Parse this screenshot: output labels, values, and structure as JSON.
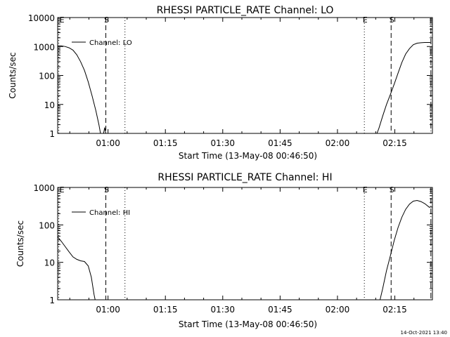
{
  "footer": {
    "timestamp": "14-Oct-2021 13:40"
  },
  "chart_data": [
    {
      "type": "line",
      "title": "RHESSI PARTICLE_RATE Channel: LO",
      "xlabel": "Start Time (13-May-08 00:46:50)",
      "ylabel": "Counts/sec",
      "yscale": "log",
      "ylim": [
        1,
        10000
      ],
      "xlim_minutes": [
        0,
        98
      ],
      "xticks": [
        {
          "label": "01:00",
          "minutes": 13.17
        },
        {
          "label": "01:15",
          "minutes": 28.17
        },
        {
          "label": "01:30",
          "minutes": 43.17
        },
        {
          "label": "01:45",
          "minutes": 58.17
        },
        {
          "label": "02:00",
          "minutes": 73.17
        },
        {
          "label": "02:15",
          "minutes": 88.17
        }
      ],
      "yticks": [
        {
          "label": "1",
          "value": 1
        },
        {
          "label": "10",
          "value": 10
        },
        {
          "label": "100",
          "value": 100
        },
        {
          "label": "1000",
          "value": 1000
        },
        {
          "label": "10000",
          "value": 10000
        }
      ],
      "legend": {
        "label": "Channel: LO",
        "placement": "top-left"
      },
      "markers": [
        {
          "label": "E",
          "minutes": 0.3,
          "style": "dotted"
        },
        {
          "label": "S",
          "minutes": 12.6,
          "style": "dashed"
        },
        {
          "label": "",
          "minutes": 17.6,
          "style": "dotted"
        },
        {
          "label": "E",
          "minutes": 80.2,
          "style": "dotted"
        },
        {
          "label": "S",
          "minutes": 87.2,
          "style": "dashed"
        },
        {
          "label": "",
          "minutes": 97.6,
          "style": "dashdot"
        }
      ],
      "series": [
        {
          "name": "Channel: LO",
          "segments": [
            [
              [
                0,
                1050
              ],
              [
                1,
                1050
              ],
              [
                2,
                1000
              ],
              [
                3,
                900
              ],
              [
                4,
                750
              ],
              [
                5,
                520
              ],
              [
                6,
                300
              ],
              [
                7,
                150
              ],
              [
                8,
                60
              ],
              [
                9,
                20
              ],
              [
                10,
                6
              ],
              [
                10.8,
                2
              ],
              [
                11.2,
                1
              ]
            ],
            [
              [
                12.0,
                1
              ],
              [
                12.3,
                1.6
              ],
              [
                12.6,
                1
              ]
            ],
            [
              [
                83.5,
                1
              ],
              [
                84,
                1.5
              ],
              [
                85,
                4
              ],
              [
                86,
                10
              ],
              [
                87,
                22
              ],
              [
                88,
                50
              ],
              [
                89,
                120
              ],
              [
                90,
                280
              ],
              [
                91,
                550
              ],
              [
                92,
                850
              ],
              [
                93,
                1150
              ],
              [
                94,
                1300
              ],
              [
                95,
                1350
              ],
              [
                96,
                1380
              ],
              [
                97.5,
                1380
              ]
            ]
          ]
        }
      ]
    },
    {
      "type": "line",
      "title": "RHESSI PARTICLE_RATE Channel: HI",
      "xlabel": "Start Time (13-May-08 00:46:50)",
      "ylabel": "Counts/sec",
      "yscale": "log",
      "ylim": [
        1,
        1000
      ],
      "xlim_minutes": [
        0,
        98
      ],
      "xticks": [
        {
          "label": "01:00",
          "minutes": 13.17
        },
        {
          "label": "01:15",
          "minutes": 28.17
        },
        {
          "label": "01:30",
          "minutes": 43.17
        },
        {
          "label": "01:45",
          "minutes": 58.17
        },
        {
          "label": "02:00",
          "minutes": 73.17
        },
        {
          "label": "02:15",
          "minutes": 88.17
        }
      ],
      "yticks": [
        {
          "label": "1",
          "value": 1
        },
        {
          "label": "10",
          "value": 10
        },
        {
          "label": "100",
          "value": 100
        },
        {
          "label": "1000",
          "value": 1000
        }
      ],
      "legend": {
        "label": "Channel: HI",
        "placement": "top-left"
      },
      "markers": [
        {
          "label": "E",
          "minutes": 0.3,
          "style": "dotted"
        },
        {
          "label": "S",
          "minutes": 12.6,
          "style": "dashed"
        },
        {
          "label": "",
          "minutes": 17.6,
          "style": "dotted"
        },
        {
          "label": "E",
          "minutes": 80.2,
          "style": "dotted"
        },
        {
          "label": "S",
          "minutes": 87.2,
          "style": "dashed"
        },
        {
          "label": "",
          "minutes": 97.6,
          "style": "dashdot"
        }
      ],
      "series": [
        {
          "name": "Channel: HI",
          "segments": [
            [
              [
                0,
                48
              ],
              [
                1,
                36
              ],
              [
                2,
                26
              ],
              [
                3,
                19
              ],
              [
                4,
                14
              ],
              [
                5,
                12
              ],
              [
                6,
                11
              ],
              [
                7,
                10.5
              ],
              [
                8,
                8
              ],
              [
                8.8,
                4
              ],
              [
                9.5,
                1.4
              ],
              [
                9.8,
                1
              ]
            ],
            [
              [
                84.3,
                1
              ],
              [
                85,
                2
              ],
              [
                86,
                6
              ],
              [
                87,
                15
              ],
              [
                88,
                38
              ],
              [
                89,
                85
              ],
              [
                90,
                160
              ],
              [
                91,
                260
              ],
              [
                92,
                360
              ],
              [
                93,
                430
              ],
              [
                94,
                450
              ],
              [
                95,
                420
              ],
              [
                96,
                370
              ],
              [
                97.3,
                290
              ]
            ]
          ]
        }
      ]
    }
  ]
}
